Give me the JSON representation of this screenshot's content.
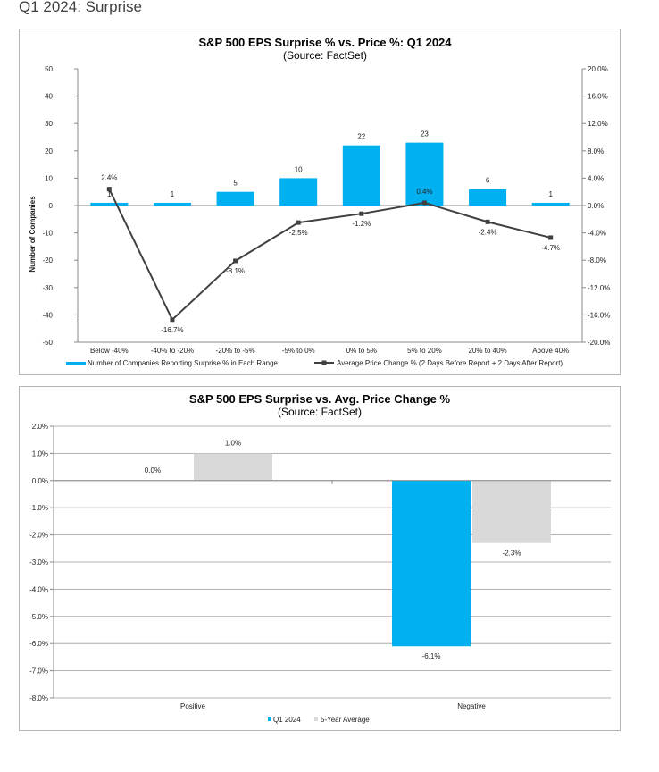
{
  "page": {
    "heading": "Q1 2024: Surprise"
  },
  "colors": {
    "bar_blue": "#00B0F0",
    "line_dark": "#404040",
    "bar_gray": "#D9D9D9",
    "grid": "#d0d0d0"
  },
  "chart_data": [
    {
      "type": "bar",
      "title": "S&P 500 EPS Surprise % vs. Price %: Q1 2024",
      "subtitle": "(Source: FactSet)",
      "ylabel": "Number of Companies",
      "ylim": [
        -50,
        50
      ],
      "y_ticks": [
        50,
        40,
        30,
        20,
        10,
        0,
        -10,
        -20,
        -30,
        -40,
        -50
      ],
      "y2lim": [
        -20,
        20
      ],
      "y2_ticks": [
        "20.0%",
        "16.0%",
        "12.0%",
        "8.0%",
        "4.0%",
        "0.0%",
        "-4.0%",
        "-8.0%",
        "-12.0%",
        "-16.0%",
        "-20.0%"
      ],
      "grid": false,
      "legend_position": "bottom",
      "categories": [
        "Below -40%",
        "-40% to -20%",
        "-20% to -5%",
        "-5% to 0%",
        "0% to 5%",
        "5% to 20%",
        "20% to 40%",
        "Above 40%"
      ],
      "series": [
        {
          "name": "Number of Companies Reporting Surprise % in Each Range",
          "kind": "bar",
          "axis": "left",
          "values": [
            1,
            1,
            5,
            10,
            22,
            23,
            6,
            1
          ],
          "labels": [
            "1",
            "1",
            "5",
            "10",
            "22",
            "23",
            "6",
            "1"
          ]
        },
        {
          "name": "Average Price Change % (2 Days Before Report + 2 Days After Report)",
          "kind": "line",
          "axis": "right",
          "values": [
            2.4,
            -16.7,
            -8.1,
            -2.5,
            -1.2,
            0.4,
            -2.4,
            -4.7
          ],
          "labels": [
            "2.4%",
            "-16.7%",
            "-8.1%",
            "-2.5%",
            "-1.2%",
            "0.4%",
            "-2.4%",
            "-4.7%"
          ]
        }
      ]
    },
    {
      "type": "bar",
      "title": "S&P 500 EPS Surprise vs. Avg. Price Change %",
      "subtitle": "(Source: FactSet)",
      "ylim": [
        -8,
        2
      ],
      "y_ticks": [
        "2.0%",
        "1.0%",
        "0.0%",
        "-1.0%",
        "-2.0%",
        "-3.0%",
        "-4.0%",
        "-5.0%",
        "-6.0%",
        "-7.0%",
        "-8.0%"
      ],
      "grid": true,
      "legend_position": "bottom",
      "categories": [
        "Positive",
        "Negative"
      ],
      "series": [
        {
          "name": "Q1 2024",
          "values": [
            0.0,
            -6.1
          ],
          "labels": [
            "0.0%",
            "-6.1%"
          ]
        },
        {
          "name": "5-Year Average",
          "values": [
            1.0,
            -2.3
          ],
          "labels": [
            "1.0%",
            "-2.3%"
          ]
        }
      ]
    }
  ]
}
